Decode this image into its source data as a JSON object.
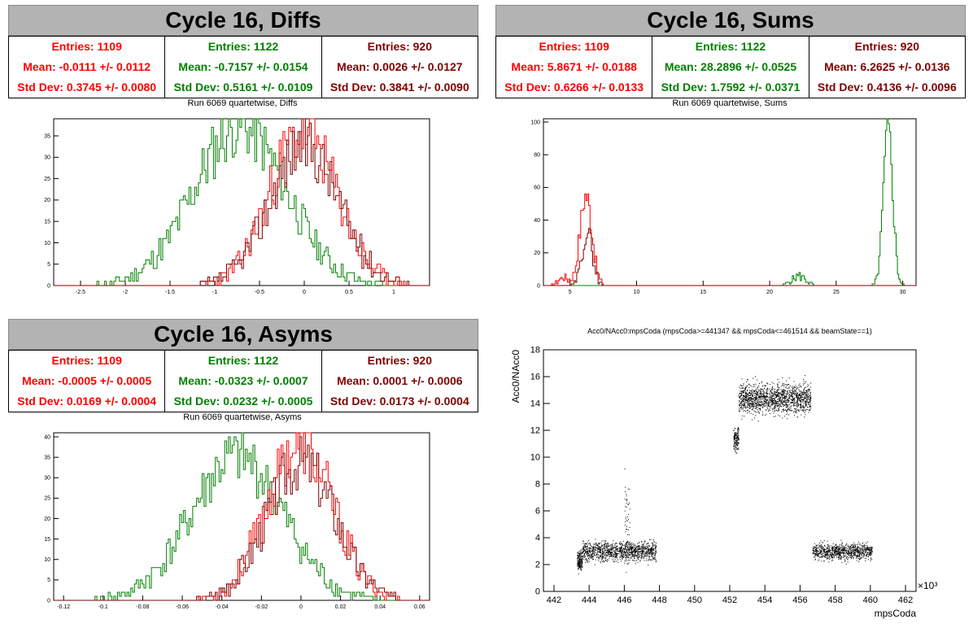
{
  "colors": {
    "red": "#ff0000",
    "green": "#008000",
    "darkred": "#800000",
    "title_bg": "#b3b3b3"
  },
  "panels": {
    "diffs": {
      "title": "Cycle 16, Diffs",
      "subtitle": "Run 6069 quartetwise, Diffs",
      "stats": [
        {
          "entries": "Entries: 1109",
          "mean": "Mean: -0.0111 +/- 0.0112",
          "std": "Std Dev: 0.3745 +/- 0.0080"
        },
        {
          "entries": "Entries: 1122",
          "mean": "Mean: -0.7157 +/- 0.0154",
          "std": "Std Dev: 0.5161 +/- 0.0109"
        },
        {
          "entries": "Entries: 920",
          "mean": "Mean: 0.0026 +/- 0.0127",
          "std": "Std Dev: 0.3841 +/- 0.0090"
        }
      ]
    },
    "sums": {
      "title": "Cycle 16, Sums",
      "subtitle": "Run 6069 quartetwise, Sums",
      "stats": [
        {
          "entries": "Entries: 1109",
          "mean": "Mean: 5.8671 +/- 0.0188",
          "std": "Std Dev: 0.6266 +/- 0.0133"
        },
        {
          "entries": "Entries: 1122",
          "mean": "Mean: 28.2896 +/- 0.0525",
          "std": "Std Dev: 1.7592 +/- 0.0371"
        },
        {
          "entries": "Entries: 920",
          "mean": "Mean: 6.2625 +/- 0.0136",
          "std": "Std Dev: 0.4136 +/- 0.0096"
        }
      ]
    },
    "asyms": {
      "title": "Cycle 16, Asyms",
      "subtitle": "Run 6069 quartetwise, Asyms",
      "stats": [
        {
          "entries": "Entries: 1109",
          "mean": "Mean: -0.0005 +/- 0.0005",
          "std": "Std Dev: 0.0169 +/- 0.0004"
        },
        {
          "entries": "Entries: 1122",
          "mean": "Mean: -0.0323 +/- 0.0007",
          "std": "Std Dev: 0.0232 +/- 0.0005"
        },
        {
          "entries": "Entries: 920",
          "mean": "Mean: 0.0001 +/- 0.0006",
          "std": "Std Dev: 0.0173 +/- 0.0004"
        }
      ]
    },
    "scatter": {
      "title": "Acc0/NAcc0:mpsCoda (mpsCoda>=441347 && mpsCoda<=461514 && beamState==1)"
    }
  },
  "chart_data": [
    {
      "type": "histogram",
      "title": "Run 6069 quartetwise, Diffs",
      "xlim": [
        -2.8,
        1.4
      ],
      "ylim": [
        0,
        39
      ],
      "xticks": [
        -2.5,
        -2,
        -1.5,
        -1,
        -0.5,
        0,
        0.5,
        1
      ],
      "yticks": [
        0,
        5,
        10,
        15,
        20,
        25,
        30,
        35
      ],
      "series": [
        {
          "color": "#008000",
          "mean": -0.7157,
          "std": 0.5161,
          "peak": 37,
          "seed": 11
        },
        {
          "color": "#ff0000",
          "mean": -0.0111,
          "std": 0.3745,
          "peak": 36,
          "seed": 23
        },
        {
          "color": "#800000",
          "mean": 0.0026,
          "std": 0.3841,
          "peak": 33,
          "seed": 37
        }
      ]
    },
    {
      "type": "histogram",
      "title": "Run 6069 quartetwise, Sums",
      "xlim": [
        3,
        31
      ],
      "ylim": [
        0,
        102
      ],
      "xticks": [
        5,
        10,
        15,
        20,
        25,
        30
      ],
      "yticks": [
        0,
        20,
        40,
        60,
        80,
        100
      ],
      "series": [
        {
          "color": "#008000",
          "mean": 28.9,
          "std": 0.35,
          "peak": 96,
          "seed": 5,
          "extra": {
            "mean": 22.2,
            "std": 0.5,
            "peak": 6
          }
        },
        {
          "color": "#ff0000",
          "mean": 6.2,
          "std": 0.45,
          "peak": 55,
          "seed": 17,
          "extra": {
            "mean": 4.5,
            "std": 0.4,
            "peak": 5
          }
        },
        {
          "color": "#800000",
          "mean": 6.3,
          "std": 0.4,
          "peak": 32,
          "seed": 29
        }
      ]
    },
    {
      "type": "histogram",
      "title": "Run 6069 quartetwise, Asyms",
      "xlim": [
        -0.125,
        0.065
      ],
      "ylim": [
        0,
        41
      ],
      "xticks": [
        -0.12,
        -0.1,
        -0.08,
        -0.06,
        -0.04,
        -0.02,
        0,
        0.02,
        0.04,
        0.06
      ],
      "yticks": [
        0,
        5,
        10,
        15,
        20,
        25,
        30,
        35,
        40
      ],
      "series": [
        {
          "color": "#008000",
          "mean": -0.0323,
          "std": 0.0232,
          "peak": 35,
          "seed": 41
        },
        {
          "color": "#ff0000",
          "mean": -0.0005,
          "std": 0.0169,
          "peak": 38,
          "seed": 53
        },
        {
          "color": "#800000",
          "mean": 0.0001,
          "std": 0.0173,
          "peak": 34,
          "seed": 67
        }
      ]
    },
    {
      "type": "scatter",
      "title": "Acc0/NAcc0:mpsCoda (mpsCoda>=441347 && mpsCoda<=461514 && beamState==1)",
      "xlabel": "mpsCoda",
      "ylabel": "Acc0/NAcc0",
      "xlim": [
        441.4,
        462.6
      ],
      "ylim": [
        0,
        18
      ],
      "xticks": [
        442,
        444,
        446,
        448,
        450,
        452,
        454,
        456,
        458,
        460,
        462
      ],
      "yticks": [
        0,
        2,
        4,
        6,
        8,
        10,
        12,
        14,
        16,
        18
      ],
      "x_multiplier": "×10³",
      "clusters": [
        {
          "x": [
            443.3,
            443.6
          ],
          "y": 2.3,
          "spread": 0.35,
          "n": 180
        },
        {
          "x": [
            443.6,
            447.8
          ],
          "y": 3.0,
          "spread": 0.35,
          "n": 1200
        },
        {
          "x": [
            446.0,
            446.3
          ],
          "y": 5.5,
          "spread": 1.6,
          "n": 50
        },
        {
          "x": [
            452.2,
            452.5
          ],
          "y": 11.3,
          "spread": 0.5,
          "n": 150
        },
        {
          "x": [
            452.5,
            456.6
          ],
          "y": 14.4,
          "spread": 0.55,
          "n": 1500
        },
        {
          "x": [
            456.7,
            460.1
          ],
          "y": 3.0,
          "spread": 0.3,
          "n": 900
        }
      ]
    }
  ]
}
